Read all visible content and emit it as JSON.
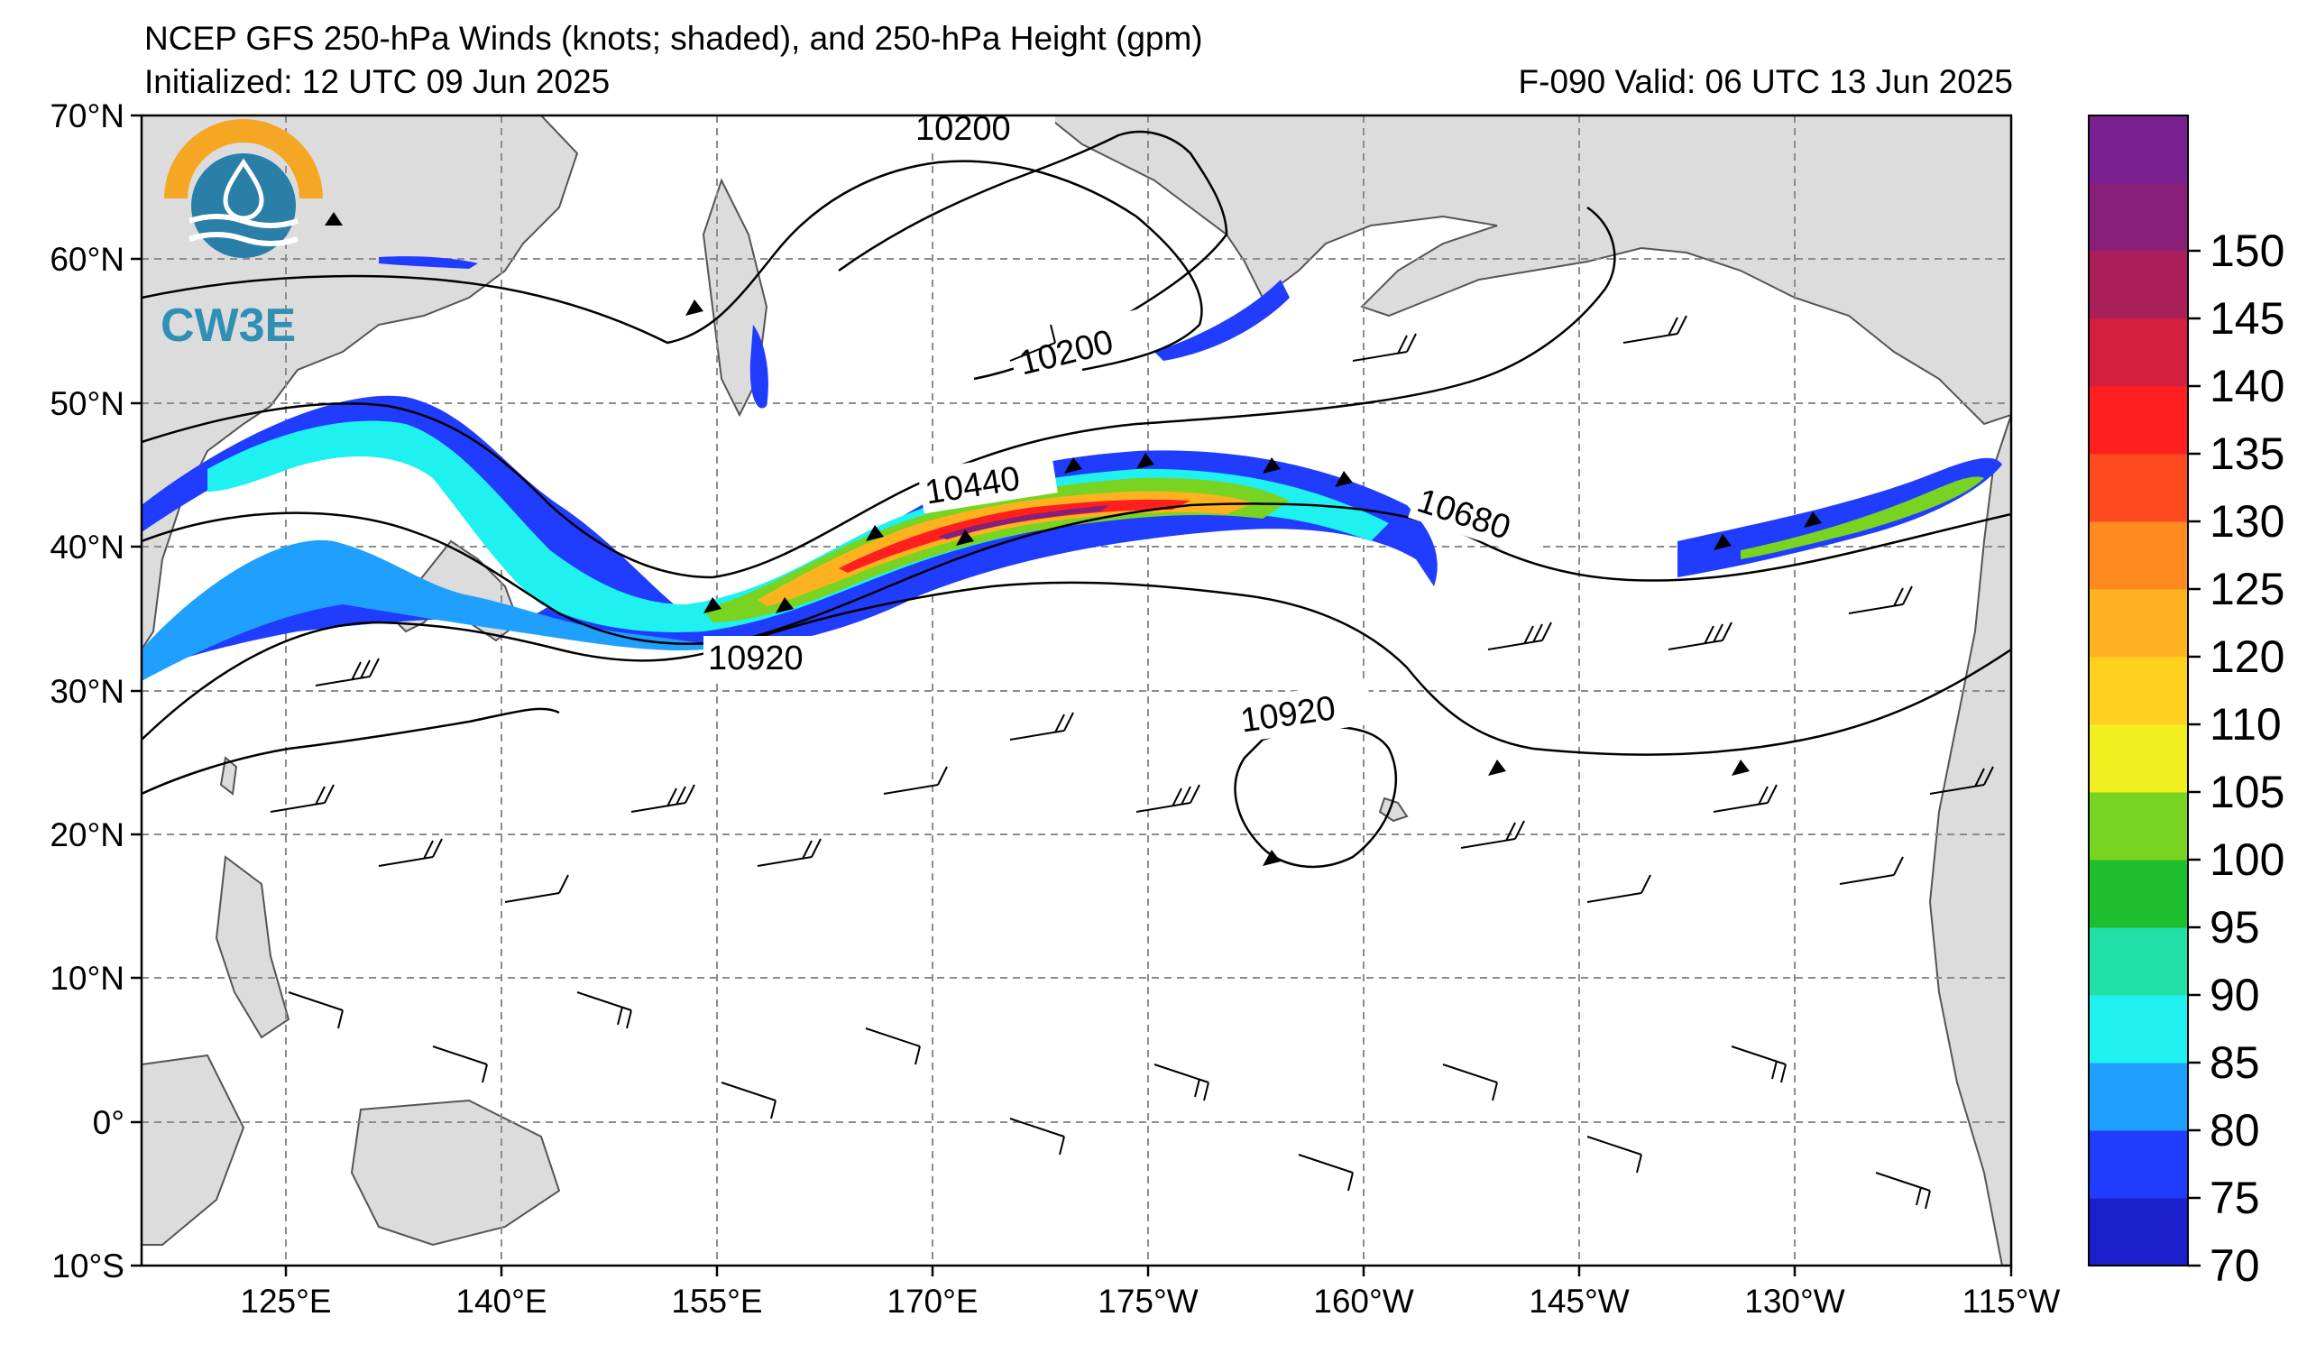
{
  "header": {
    "title": "NCEP GFS 250-hPa Winds (knots; shaded), and 250-hPa Height (gpm)",
    "initialized": "Initialized: 12 UTC 09 Jun 2025",
    "valid": "F-090  Valid: 06 UTC 13 Jun 2025"
  },
  "logo": {
    "text": "CW3E"
  },
  "map": {
    "lat_range": [
      -10,
      70
    ],
    "lon_range_east": [
      115,
      245
    ],
    "lat_ticks": [
      "70°N",
      "60°N",
      "50°N",
      "40°N",
      "30°N",
      "20°N",
      "10°N",
      "0°",
      "10°S"
    ],
    "lon_ticks": [
      "125°E",
      "140°E",
      "155°E",
      "170°E",
      "175°W",
      "160°W",
      "145°W",
      "130°W",
      "115°W"
    ],
    "contour_labels": [
      "10200",
      "10200",
      "10440",
      "10680",
      "10920",
      "10920"
    ],
    "land_color": "#dcdcdc",
    "grid": true
  },
  "colorbar": {
    "ticks": [
      "70",
      "75",
      "80",
      "85",
      "90",
      "95",
      "100",
      "105",
      "110",
      "120",
      "125",
      "130",
      "135",
      "140",
      "145",
      "150"
    ],
    "colors": [
      "#1c1fcc",
      "#1f3cff",
      "#1fa0ff",
      "#1ff0f0",
      "#20e0a8",
      "#1fbf2f",
      "#78d420",
      "#f0f020",
      "#ffd11f",
      "#ffb21f",
      "#ff8a1f",
      "#ff4a1f",
      "#ff1f1f",
      "#d41f3f",
      "#aa1f5a",
      "#8a1f7a",
      "#7a2090"
    ]
  }
}
